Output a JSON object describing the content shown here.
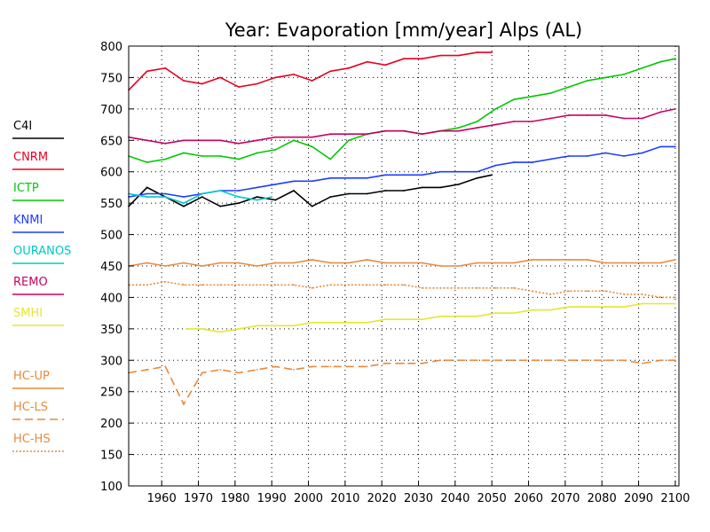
{
  "chart_data": {
    "type": "line",
    "title": "Year: Evaporation [mm/year] Alps (AL)",
    "xlabel": "",
    "ylabel": "",
    "xlim": [
      1951,
      2101
    ],
    "ylim": [
      100,
      800
    ],
    "x_ticks": [
      1960,
      1970,
      1980,
      1990,
      2000,
      2010,
      2020,
      2030,
      2040,
      2050,
      2060,
      2070,
      2080,
      2090,
      2100
    ],
    "x_tick_labels": [
      "1960",
      "1970",
      "1980",
      "1990",
      "2000",
      "2010",
      "2020",
      "2030",
      "2040",
      "2050",
      "2060",
      "2070",
      "2080",
      "2090",
      "2100"
    ],
    "y_ticks": [
      100,
      150,
      200,
      250,
      300,
      350,
      400,
      450,
      500,
      550,
      600,
      650,
      700,
      750,
      800
    ],
    "y_tick_labels": [
      "100",
      "150",
      "200",
      "250",
      "300",
      "350",
      "400",
      "450",
      "500",
      "550",
      "600",
      "650",
      "700",
      "750",
      "800"
    ],
    "grid": true,
    "legend_position": "left",
    "series": [
      {
        "name": "C4I",
        "color": "#000000",
        "dash": "solid",
        "x": [
          1951,
          1956,
          1961,
          1966,
          1971,
          1976,
          1981,
          1986,
          1991,
          1996,
          2001,
          2006,
          2011,
          2016,
          2021,
          2026,
          2031,
          2036,
          2041,
          2046,
          2050
        ],
        "y": [
          545,
          575,
          560,
          545,
          560,
          545,
          550,
          560,
          555,
          570,
          545,
          560,
          565,
          565,
          570,
          570,
          575,
          575,
          580,
          590,
          595
        ]
      },
      {
        "name": "CNRM",
        "color": "#e8001e",
        "dash": "solid",
        "x": [
          1951,
          1956,
          1961,
          1966,
          1971,
          1976,
          1981,
          1986,
          1991,
          1996,
          2001,
          2006,
          2011,
          2016,
          2021,
          2026,
          2031,
          2036,
          2041,
          2046,
          2050
        ],
        "y": [
          730,
          760,
          765,
          745,
          740,
          750,
          735,
          740,
          750,
          755,
          745,
          760,
          765,
          775,
          770,
          780,
          780,
          785,
          785,
          790,
          790
        ]
      },
      {
        "name": "ICTP",
        "color": "#00c800",
        "dash": "solid",
        "x": [
          1951,
          1956,
          1961,
          1966,
          1971,
          1976,
          1981,
          1986,
          1991,
          1996,
          2001,
          2006,
          2011,
          2016,
          2021,
          2026,
          2031,
          2036,
          2041,
          2046,
          2051,
          2056,
          2061,
          2066,
          2071,
          2076,
          2081,
          2086,
          2091,
          2096,
          2100
        ],
        "y": [
          625,
          615,
          620,
          630,
          625,
          625,
          620,
          630,
          635,
          650,
          640,
          620,
          650,
          660,
          665,
          665,
          660,
          665,
          670,
          680,
          700,
          715,
          720,
          725,
          735,
          745,
          750,
          755,
          765,
          775,
          780
        ]
      },
      {
        "name": "KNMI",
        "color": "#1e3cff",
        "dash": "solid",
        "x": [
          1951,
          1956,
          1961,
          1966,
          1971,
          1976,
          1981,
          1986,
          1991,
          1996,
          2001,
          2006,
          2011,
          2016,
          2021,
          2026,
          2031,
          2036,
          2041,
          2046,
          2051,
          2056,
          2061,
          2066,
          2071,
          2076,
          2081,
          2086,
          2091,
          2096,
          2100
        ],
        "y": [
          560,
          565,
          565,
          560,
          565,
          570,
          570,
          575,
          580,
          585,
          585,
          590,
          590,
          590,
          595,
          595,
          595,
          600,
          600,
          600,
          610,
          615,
          615,
          620,
          625,
          625,
          630,
          625,
          630,
          640,
          640
        ]
      },
      {
        "name": "OURANOS",
        "color": "#00c8c8",
        "dash": "solid",
        "x": [
          1951,
          1956,
          1961,
          1966,
          1971,
          1976,
          1981,
          1986,
          1990
        ],
        "y": [
          565,
          560,
          560,
          550,
          565,
          570,
          560,
          555,
          560
        ]
      },
      {
        "name": "REMO",
        "color": "#c80064",
        "dash": "solid",
        "x": [
          1951,
          1956,
          1961,
          1966,
          1971,
          1976,
          1981,
          1986,
          1991,
          1996,
          2001,
          2006,
          2011,
          2016,
          2021,
          2026,
          2031,
          2036,
          2041,
          2046,
          2051,
          2056,
          2061,
          2066,
          2071,
          2076,
          2081,
          2086,
          2091,
          2096,
          2100
        ],
        "y": [
          655,
          650,
          645,
          650,
          650,
          650,
          645,
          650,
          655,
          655,
          655,
          660,
          660,
          660,
          665,
          665,
          660,
          665,
          665,
          670,
          675,
          680,
          680,
          685,
          690,
          690,
          690,
          685,
          685,
          695,
          700
        ]
      },
      {
        "name": "SMHI",
        "color": "#e6e632",
        "dash": "solid",
        "x": [
          1967,
          1971,
          1976,
          1981,
          1986,
          1991,
          1996,
          2001,
          2006,
          2011,
          2016,
          2021,
          2026,
          2031,
          2036,
          2041,
          2046,
          2051,
          2056,
          2061,
          2066,
          2071,
          2076,
          2081,
          2086,
          2091,
          2096,
          2100
        ],
        "y": [
          350,
          350,
          345,
          350,
          355,
          355,
          355,
          360,
          360,
          360,
          360,
          365,
          365,
          365,
          370,
          370,
          370,
          375,
          375,
          380,
          380,
          385,
          385,
          385,
          385,
          390,
          390,
          390
        ]
      },
      {
        "name": "HC-UP",
        "color": "#e8893a",
        "dash": "solid",
        "x": [
          1951,
          1956,
          1961,
          1966,
          1971,
          1976,
          1981,
          1986,
          1991,
          1996,
          2001,
          2006,
          2011,
          2016,
          2021,
          2026,
          2031,
          2036,
          2041,
          2046,
          2051,
          2056,
          2061,
          2066,
          2071,
          2076,
          2081,
          2086,
          2091,
          2096,
          2100
        ],
        "y": [
          450,
          455,
          450,
          455,
          450,
          455,
          455,
          450,
          455,
          455,
          460,
          455,
          455,
          460,
          455,
          455,
          455,
          450,
          450,
          455,
          455,
          455,
          460,
          460,
          460,
          460,
          455,
          455,
          455,
          455,
          460
        ]
      },
      {
        "name": "HC-LS",
        "color": "#e8893a",
        "dash": "longdash",
        "x": [
          1951,
          1956,
          1961,
          1966,
          1971,
          1976,
          1981,
          1986,
          1991,
          1996,
          2001,
          2006,
          2011,
          2016,
          2021,
          2026,
          2031,
          2036,
          2041,
          2046,
          2051,
          2056,
          2061,
          2066,
          2071,
          2076,
          2081,
          2086,
          2091,
          2096,
          2100
        ],
        "y": [
          280,
          285,
          290,
          230,
          280,
          285,
          280,
          285,
          290,
          285,
          290,
          290,
          290,
          290,
          295,
          295,
          295,
          300,
          300,
          300,
          300,
          300,
          300,
          300,
          300,
          300,
          300,
          300,
          295,
          300,
          300
        ]
      },
      {
        "name": "HC-HS",
        "color": "#e8893a",
        "dash": "dotted",
        "x": [
          1951,
          1956,
          1961,
          1966,
          1971,
          1976,
          1981,
          1986,
          1991,
          1996,
          2001,
          2006,
          2011,
          2016,
          2021,
          2026,
          2031,
          2036,
          2041,
          2046,
          2051,
          2056,
          2061,
          2066,
          2071,
          2076,
          2081,
          2086,
          2091,
          2096,
          2100
        ],
        "y": [
          420,
          420,
          425,
          420,
          420,
          420,
          420,
          420,
          420,
          420,
          415,
          420,
          420,
          420,
          420,
          420,
          415,
          415,
          415,
          415,
          415,
          415,
          410,
          405,
          410,
          410,
          410,
          405,
          405,
          400,
          400
        ]
      }
    ]
  }
}
